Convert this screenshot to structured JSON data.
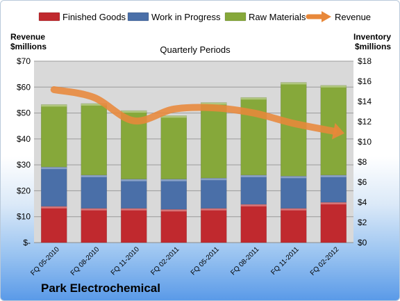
{
  "company": "Park Electrochemical",
  "legend": [
    {
      "name": "Finished Goods",
      "icon": "swatch-red"
    },
    {
      "name": "Work in Progress",
      "icon": "swatch-blue"
    },
    {
      "name": "Raw Materials",
      "icon": "swatch-green"
    },
    {
      "name": "Revenue",
      "icon": "arrow-orange"
    }
  ],
  "colors": {
    "finished_goods": "#c0292e",
    "work_in_progress": "#4a6fa8",
    "raw_materials": "#86a83a",
    "revenue": "#e8883a",
    "plot_bg": "#d9d9d9"
  },
  "chart_data": {
    "type": "bar",
    "stacked": true,
    "subtitle": "Quarterly Periods",
    "left_axis_title": [
      "Revenue",
      "$millions"
    ],
    "right_axis_title": [
      "Inventory",
      "$millions"
    ],
    "categories": [
      "FQ 05-2010",
      "FQ 08-2010",
      "FQ 11-2010",
      "FQ 02-2011",
      "FQ 05-2011",
      "FQ 08-2011",
      "FQ 11-2011",
      "FQ 02-2012"
    ],
    "series": [
      {
        "name": "Finished Goods",
        "axis": "right",
        "values": [
          3.6,
          3.4,
          3.4,
          3.3,
          3.4,
          3.8,
          3.4,
          4.0
        ]
      },
      {
        "name": "Work in Progress",
        "axis": "right",
        "values": [
          3.9,
          3.3,
          2.9,
          3.0,
          3.0,
          2.9,
          3.2,
          2.7
        ]
      },
      {
        "name": "Raw Materials",
        "axis": "right",
        "values": [
          6.2,
          7.1,
          6.8,
          6.3,
          7.5,
          7.7,
          9.3,
          8.9
        ]
      },
      {
        "name": "Revenue",
        "type": "line",
        "axis": "left",
        "values": [
          59,
          56,
          47,
          51.5,
          52,
          50,
          46,
          43
        ]
      }
    ],
    "left_ticks": [
      "$-",
      "$10",
      "$20",
      "$30",
      "$40",
      "$50",
      "$60",
      "$70"
    ],
    "right_ticks": [
      "$0",
      "$2",
      "$4",
      "$6",
      "$8",
      "$10",
      "$12",
      "$14",
      "$16",
      "$18"
    ],
    "left_ylim": [
      0,
      70
    ],
    "right_ylim": [
      0,
      18
    ],
    "grid": true,
    "legend_position": "top"
  }
}
